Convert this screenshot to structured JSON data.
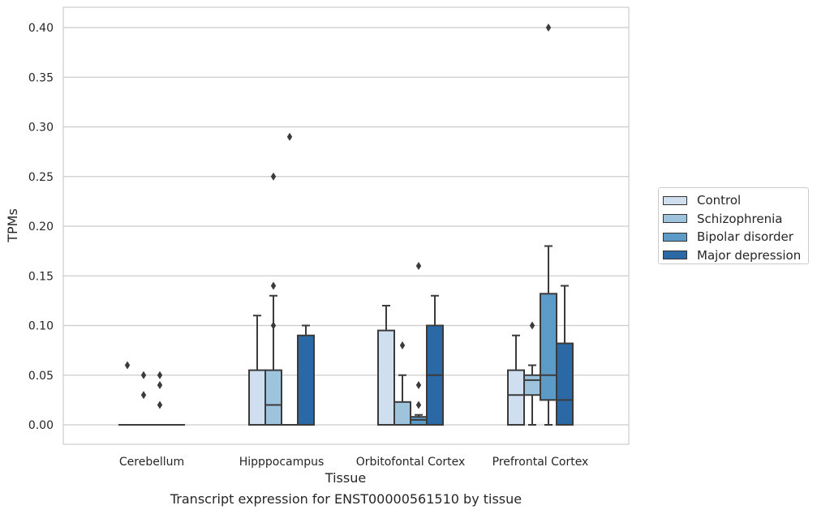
{
  "chart_data": {
    "type": "box",
    "caption": "Transcript expression for ENST00000561510 by tissue",
    "xlabel": "Tissue",
    "ylabel": "TPMs",
    "ylim": [
      -0.02,
      0.42
    ],
    "yticks": [
      "0.00",
      "0.05",
      "0.10",
      "0.15",
      "0.20",
      "0.25",
      "0.30",
      "0.35",
      "0.40"
    ],
    "grid": true,
    "legend_position": "right",
    "categories": [
      "Cerebellum",
      "Hipppocampus",
      "Orbitofontal Cortex",
      "Prefrontal Cortex"
    ],
    "series": [
      {
        "name": "Control",
        "color": "#cfdff0",
        "boxes": [
          {
            "q1": 0,
            "median": 0,
            "q3": 0,
            "whisker_low": 0,
            "whisker_high": 0,
            "outliers": [
              0.06
            ]
          },
          {
            "q1": 0,
            "median": 0,
            "q3": 0.055,
            "whisker_low": 0,
            "whisker_high": 0.11,
            "outliers": []
          },
          {
            "q1": 0,
            "median": 0,
            "q3": 0.095,
            "whisker_low": 0,
            "whisker_high": 0.12,
            "outliers": []
          },
          {
            "q1": 0,
            "median": 0.03,
            "q3": 0.055,
            "whisker_low": 0,
            "whisker_high": 0.09,
            "outliers": []
          }
        ]
      },
      {
        "name": "Schizophrenia",
        "color": "#9dc3dd",
        "boxes": [
          {
            "q1": 0,
            "median": 0,
            "q3": 0,
            "whisker_low": 0,
            "whisker_high": 0,
            "outliers": [
              0.05,
              0.03
            ]
          },
          {
            "q1": 0,
            "median": 0.02,
            "q3": 0.055,
            "whisker_low": 0,
            "whisker_high": 0.13,
            "outliers": [
              0.25,
              0.14,
              0.1
            ]
          },
          {
            "q1": 0,
            "median": 0,
            "q3": 0.023,
            "whisker_low": 0,
            "whisker_high": 0.05,
            "outliers": [
              0.08
            ]
          },
          {
            "q1": 0.03,
            "median": 0.045,
            "q3": 0.05,
            "whisker_low": 0,
            "whisker_high": 0.06,
            "outliers": [
              0.1
            ]
          }
        ]
      },
      {
        "name": "Bipolar disorder",
        "color": "#5c9ac8",
        "boxes": [
          {
            "q1": 0,
            "median": 0,
            "q3": 0,
            "whisker_low": 0,
            "whisker_high": 0,
            "outliers": [
              0.05,
              0.04,
              0.02
            ]
          },
          {
            "q1": 0,
            "median": 0,
            "q3": 0,
            "whisker_low": 0,
            "whisker_high": 0,
            "outliers": [
              0.29
            ]
          },
          {
            "q1": 0,
            "median": 0.005,
            "q3": 0.008,
            "whisker_low": 0,
            "whisker_high": 0.01,
            "outliers": [
              0.16,
              0.04,
              0.02
            ]
          },
          {
            "q1": 0.025,
            "median": 0.05,
            "q3": 0.132,
            "whisker_low": 0,
            "whisker_high": 0.18,
            "outliers": [
              0.4
            ]
          }
        ]
      },
      {
        "name": "Major depression",
        "color": "#2a69a6",
        "boxes": [
          {
            "q1": 0,
            "median": 0,
            "q3": 0,
            "whisker_low": 0,
            "whisker_high": 0,
            "outliers": []
          },
          {
            "q1": 0,
            "median": 0,
            "q3": 0.09,
            "whisker_low": 0,
            "whisker_high": 0.1,
            "outliers": []
          },
          {
            "q1": 0,
            "median": 0.05,
            "q3": 0.1,
            "whisker_low": 0,
            "whisker_high": 0.13,
            "outliers": []
          },
          {
            "q1": 0,
            "median": 0.025,
            "q3": 0.082,
            "whisker_low": 0,
            "whisker_high": 0.14,
            "outliers": []
          }
        ]
      }
    ]
  }
}
